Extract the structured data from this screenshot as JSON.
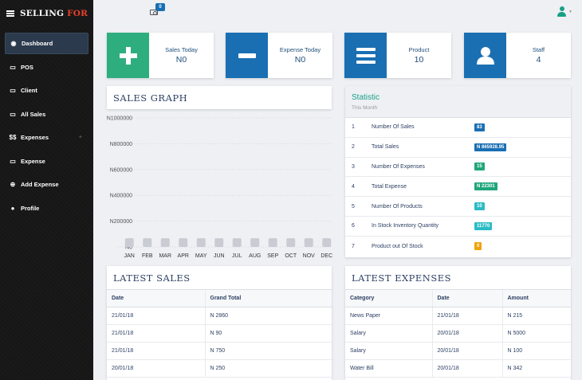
{
  "brand": {
    "name": "SELLING",
    "accent": "FOR"
  },
  "nav": [
    {
      "icon": "dashboard-icon",
      "glyph": "◉",
      "label": "Dashboard",
      "active": true
    },
    {
      "icon": "cash-icon",
      "glyph": "▭",
      "label": "POS"
    },
    {
      "icon": "cash-icon",
      "glyph": "▭",
      "label": "Client"
    },
    {
      "icon": "cash-icon",
      "glyph": "▭",
      "label": "All Sales"
    },
    {
      "icon": "dollar-icon",
      "glyph": "$$",
      "label": "Expenses",
      "expandable": true
    },
    {
      "icon": "cash-icon",
      "glyph": "▭",
      "label": "Expense"
    },
    {
      "icon": "plus-circle-icon",
      "glyph": "⊕",
      "label": "Add Expense"
    },
    {
      "icon": "user-icon",
      "glyph": "●",
      "label": "Profile"
    }
  ],
  "topbar": {
    "notification_count": "0"
  },
  "stats": [
    {
      "label": "Sales Today",
      "value": "N0",
      "color": "#2eae7f",
      "icon": "plus-icon"
    },
    {
      "label": "Expense Today",
      "value": "N0",
      "color": "#1a6fb3",
      "icon": "minus-icon"
    },
    {
      "label": "Product",
      "value": "10",
      "color": "#1a6fb3",
      "icon": "list-icon"
    },
    {
      "label": "Staff",
      "value": "4",
      "color": "#1a6fb3",
      "icon": "user-icon"
    }
  ],
  "graph": {
    "title": "SALES GRAPH"
  },
  "chart_data": {
    "type": "bar",
    "categories": [
      "JAN",
      "FEB",
      "MAR",
      "APR",
      "MAY",
      "JUN",
      "JUL",
      "AUG",
      "SEP",
      "OCT",
      "NOV",
      "DEC"
    ],
    "values": [
      0,
      0,
      0,
      0,
      0,
      0,
      0,
      0,
      0,
      0,
      0,
      0
    ],
    "ylim": [
      0,
      1000000
    ],
    "yticks": [
      0,
      200000,
      400000,
      600000,
      800000,
      1000000
    ],
    "ytick_labels": [
      "N0",
      "N200000",
      "N400000",
      "N600000",
      "N800000",
      "N1000000"
    ],
    "grid": true,
    "bar_color": "#c9ccd3"
  },
  "statistic": {
    "title": "Statistic",
    "subtitle": "This Month",
    "rows": [
      {
        "num": "1",
        "name": "Number Of Sales",
        "value": "83",
        "badge": "b-blue"
      },
      {
        "num": "2",
        "name": "Total Sales",
        "value": "N 865928.95",
        "badge": "b-blue"
      },
      {
        "num": "3",
        "name": "Number Of Expenses",
        "value": "15",
        "badge": "b-green"
      },
      {
        "num": "4",
        "name": "Total Expense",
        "value": "N 22301",
        "badge": "b-green"
      },
      {
        "num": "5",
        "name": "Number Of Products",
        "value": "10",
        "badge": "b-teal"
      },
      {
        "num": "6",
        "name": "In Stock Inventory Quantity",
        "value": "11770",
        "badge": "b-teal"
      },
      {
        "num": "7",
        "name": "Product out Of Stock",
        "value": "0",
        "badge": "b-orange"
      }
    ]
  },
  "latest_sales": {
    "title": "LATEST SALES",
    "columns": [
      "Date",
      "Grand Total"
    ],
    "rows": [
      [
        "21/01/18",
        "N 2860"
      ],
      [
        "21/01/18",
        "N 90"
      ],
      [
        "21/01/18",
        "N 750"
      ],
      [
        "20/01/18",
        "N 250"
      ]
    ]
  },
  "latest_expenses": {
    "title": "LATEST EXPENSES",
    "columns": [
      "Category",
      "Date",
      "Amount"
    ],
    "rows": [
      [
        "News Paper",
        "21/01/18",
        "N 215"
      ],
      [
        "Salary",
        "20/01/18",
        "N 5000"
      ],
      [
        "Salary",
        "20/01/18",
        "N 100"
      ],
      [
        "Water Bill",
        "20/01/18",
        "N 342"
      ]
    ]
  }
}
